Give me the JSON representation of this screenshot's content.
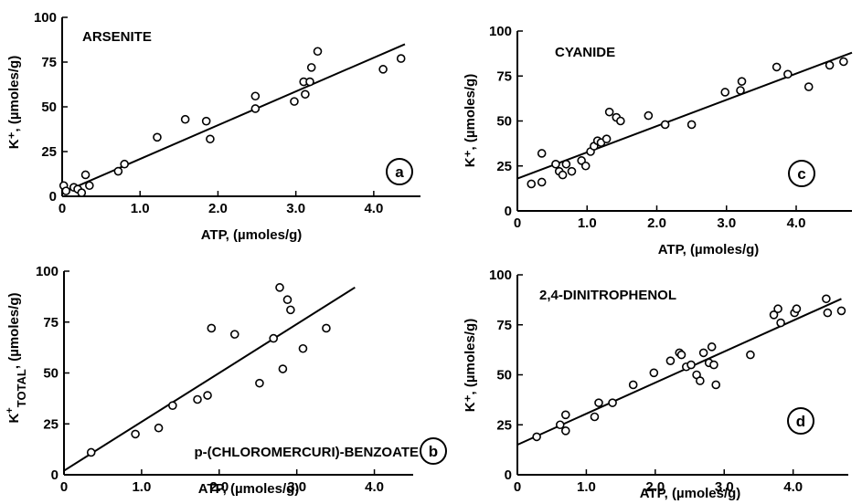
{
  "chart_data": [
    {
      "type": "scatter",
      "panel_label": "a",
      "annotation": "ARSENITE",
      "xlabel": "ATP, (µmoles/g)",
      "ylabel": "K⁺, (µmoles/g)",
      "xlim": [
        0,
        4.6
      ],
      "ylim": [
        0,
        100
      ],
      "xticks": [
        0,
        1.0,
        2.0,
        3.0,
        4.0
      ],
      "xtick_labels": [
        "0",
        "1.0",
        "2.0",
        "3.0",
        "4.0"
      ],
      "yticks": [
        0,
        25,
        50,
        75,
        100
      ],
      "ytick_labels": [
        "0",
        "25",
        "50",
        "75",
        "100"
      ],
      "grid": false,
      "series": [
        {
          "x": [
            0.02,
            0.05,
            0.15,
            0.2,
            0.25,
            0.3,
            0.35,
            0.72,
            0.8,
            1.22,
            1.58,
            1.85,
            1.9,
            2.48,
            2.48,
            2.98,
            3.1,
            3.12,
            3.18,
            3.2,
            3.28,
            4.12,
            4.35
          ],
          "y": [
            6,
            3,
            5,
            4,
            2,
            12,
            6,
            14,
            18,
            33,
            43,
            42,
            32,
            56,
            49,
            53,
            64,
            57,
            64,
            72,
            81,
            71,
            77
          ]
        }
      ],
      "fit_line": {
        "x": [
          0,
          4.4
        ],
        "y": [
          2,
          85
        ]
      }
    },
    {
      "type": "scatter",
      "panel_label": "c",
      "annotation": "CYANIDE",
      "xlabel": "ATP, (µmoles/g)",
      "ylabel": "K⁺, (µmoles/g)",
      "xlim": [
        0,
        4.8
      ],
      "ylim": [
        0,
        100
      ],
      "xticks": [
        0,
        1.0,
        2.0,
        3.0,
        4.0
      ],
      "xtick_labels": [
        "0",
        "1.0",
        "2.0",
        "3.0",
        "4.0"
      ],
      "yticks": [
        0,
        25,
        50,
        75,
        100
      ],
      "ytick_labels": [
        "0",
        "25",
        "50",
        "75",
        "100"
      ],
      "grid": false,
      "series": [
        {
          "x": [
            0.2,
            0.35,
            0.35,
            0.55,
            0.6,
            0.65,
            0.7,
            0.78,
            0.92,
            0.98,
            1.05,
            1.1,
            1.15,
            1.2,
            1.28,
            1.32,
            1.42,
            1.48,
            1.88,
            2.12,
            2.5,
            2.98,
            3.2,
            3.22,
            3.72,
            3.88,
            4.18,
            4.48,
            4.68
          ],
          "y": [
            15,
            16,
            32,
            26,
            22,
            20,
            26,
            22,
            28,
            25,
            33,
            36,
            39,
            38,
            40,
            55,
            52,
            50,
            53,
            48,
            48,
            66,
            67,
            72,
            80,
            76,
            69,
            81,
            83
          ]
        }
      ],
      "fit_line": {
        "x": [
          0,
          4.8
        ],
        "y": [
          18,
          88
        ]
      }
    },
    {
      "type": "scatter",
      "panel_label": "b",
      "annotation": "p-(CHLOROMERCURI)-BENZOATE",
      "xlabel": "ATP, (µmoles/g)",
      "ylabel": "K⁺ TOTAL, (µmoles/g)",
      "ylabel_main": "K",
      "ylabel_sup": "+",
      "ylabel_sub": "TOTAL",
      "ylabel_rest": ", (µmoles/g)",
      "xlim": [
        0,
        4.5
      ],
      "ylim": [
        0,
        100
      ],
      "xticks": [
        0,
        1.0,
        2.0,
        3.0,
        4.0
      ],
      "xtick_labels": [
        "0",
        "1.0",
        "2.0",
        "3.0",
        "4.0"
      ],
      "yticks": [
        0,
        25,
        50,
        75,
        100
      ],
      "ytick_labels": [
        "0",
        "25",
        "50",
        "75",
        "100"
      ],
      "grid": false,
      "series": [
        {
          "x": [
            0.35,
            0.92,
            1.22,
            1.4,
            1.72,
            1.85,
            1.9,
            2.2,
            2.52,
            2.7,
            2.78,
            2.82,
            2.88,
            2.92,
            3.08,
            3.38
          ],
          "y": [
            11,
            20,
            23,
            34,
            37,
            39,
            72,
            69,
            45,
            67,
            92,
            52,
            86,
            81,
            62,
            72
          ]
        }
      ],
      "fit_line": {
        "x": [
          0,
          3.75
        ],
        "y": [
          2,
          92
        ]
      }
    },
    {
      "type": "scatter",
      "panel_label": "d",
      "annotation": "2,4-DINITROPHENOL",
      "xlabel": "ATP, (µmoles/g)",
      "ylabel": "K⁺, (µmoles/g)",
      "xlim": [
        0,
        4.8
      ],
      "ylim": [
        0,
        100
      ],
      "xticks": [
        0,
        1.0,
        2.0,
        3.0,
        4.0
      ],
      "xtick_labels": [
        "0",
        "1.0",
        "2.0",
        "3.0",
        "4.0"
      ],
      "yticks": [
        0,
        25,
        50,
        75,
        100
      ],
      "ytick_labels": [
        "0",
        "25",
        "50",
        "75",
        "100"
      ],
      "grid": false,
      "series": [
        {
          "x": [
            0.28,
            0.62,
            0.7,
            0.7,
            1.12,
            1.18,
            1.38,
            1.68,
            1.98,
            2.22,
            2.35,
            2.38,
            2.45,
            2.52,
            2.6,
            2.65,
            2.7,
            2.78,
            2.82,
            2.85,
            2.88,
            3.38,
            3.72,
            3.78,
            3.82,
            4.02,
            4.05,
            4.48,
            4.5,
            4.7
          ],
          "y": [
            19,
            25,
            22,
            30,
            29,
            36,
            36,
            45,
            51,
            57,
            61,
            60,
            54,
            55,
            50,
            47,
            61,
            56,
            64,
            55,
            45,
            60,
            80,
            83,
            76,
            81,
            83,
            88,
            81,
            82
          ]
        }
      ],
      "fit_line": {
        "x": [
          0,
          4.7
        ],
        "y": [
          15,
          88
        ]
      }
    }
  ]
}
